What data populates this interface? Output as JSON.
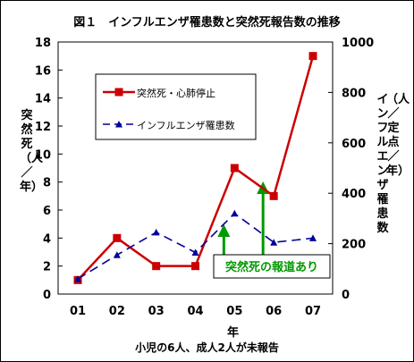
{
  "chart_data": {
    "type": "line",
    "title": "図１　インフルエンザ罹患数と突然死報告数の推移",
    "categories": [
      "01",
      "02",
      "03",
      "04",
      "05",
      "06",
      "07"
    ],
    "xlabel": "年",
    "ylabel_left": "突然死（人／年）",
    "ylabel_right_main": "インフルエンザ罹患数",
    "ylabel_right_paren": "（人／定点／年）",
    "ylim_left": [
      0,
      18
    ],
    "yticks_left": [
      0,
      2,
      4,
      6,
      8,
      10,
      12,
      14,
      16,
      18
    ],
    "ylim_right": [
      0,
      1000
    ],
    "yticks_right": [
      0,
      200,
      400,
      600,
      800,
      1000
    ],
    "series": [
      {
        "name": "突然死・心肺停止",
        "axis": "left",
        "color": "#cc0000",
        "style": "solid-square",
        "values": [
          1,
          4,
          2,
          2,
          9,
          7,
          17
        ]
      },
      {
        "name": "インフルエンザ罹患数",
        "axis": "right",
        "color": "#000099",
        "style": "dashed-triangle",
        "values": [
          60,
          155,
          245,
          165,
          320,
          205,
          222
        ]
      }
    ],
    "annotation": {
      "text": "突然死の報道あり",
      "color": "#009900",
      "arrow_at": [
        "05",
        "06"
      ]
    },
    "footnote": "小児の6人、成人2人が未報告",
    "legend_position": "top-left"
  }
}
